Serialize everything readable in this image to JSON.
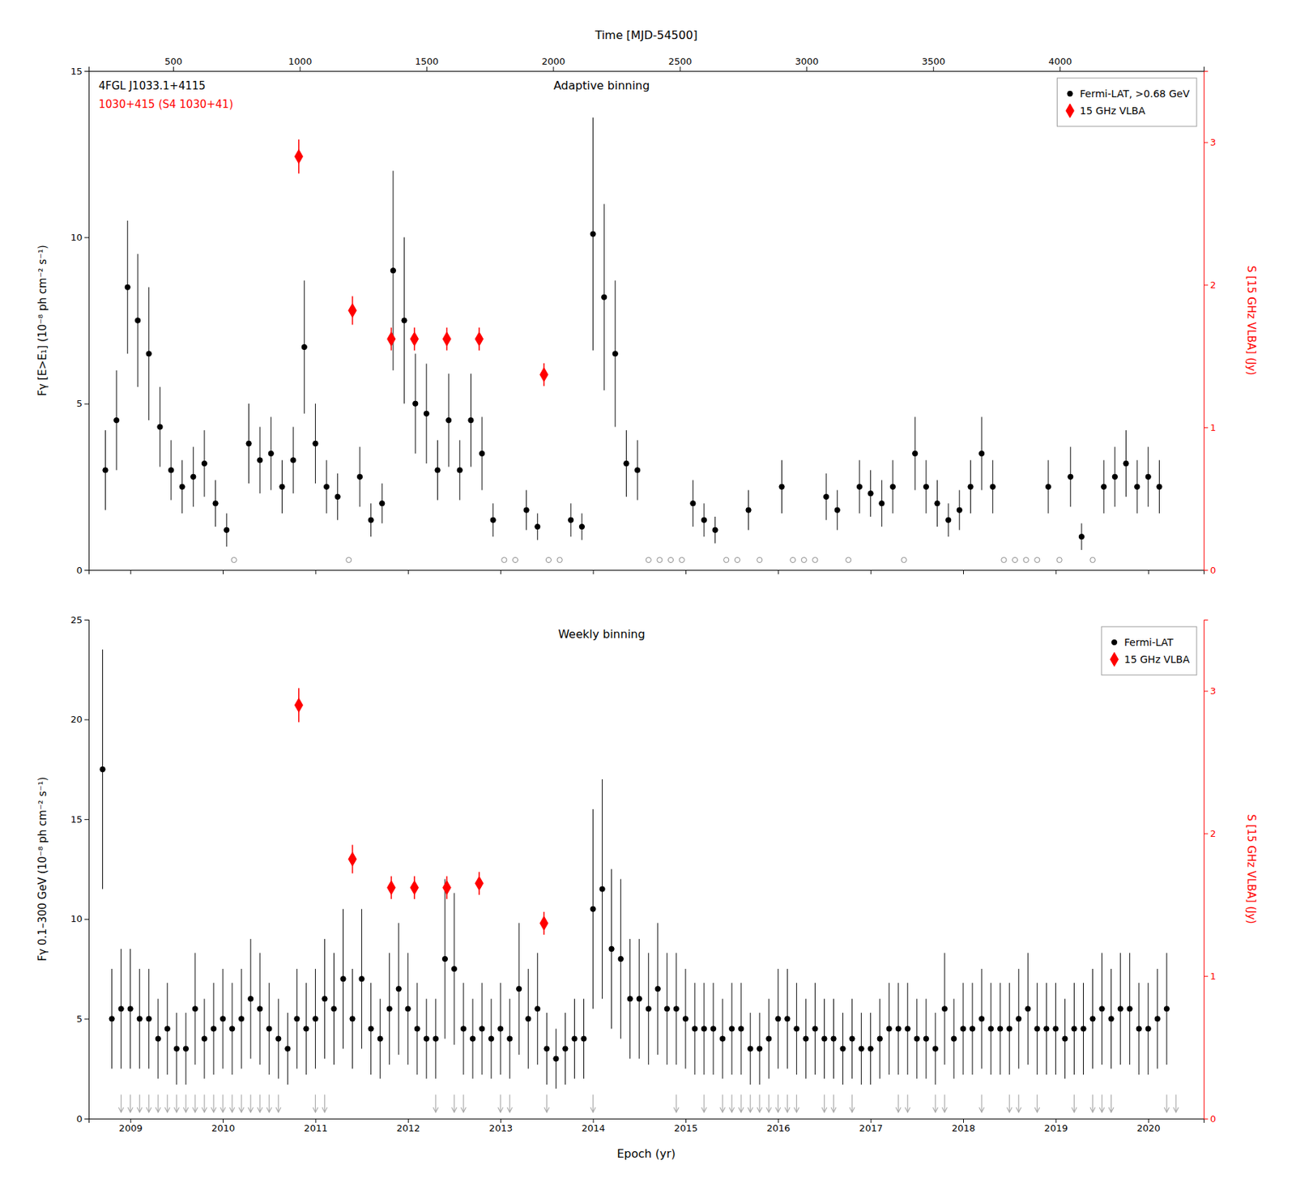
{
  "chart_data": [
    {
      "type": "scatter",
      "title": "Adaptive binning",
      "x2_label": "Time [MJD-54500]",
      "y_label": "Fγ [E>E₁] (10⁻⁸ ph cm⁻² s⁻¹)",
      "y2_label": "S [15 GHz VLBA] (Jy)",
      "annotations": [
        {
          "text": "4FGL J1033.1+4115",
          "color": "black"
        },
        {
          "text": "1030+415 (S4 1030+41)",
          "color": "red"
        }
      ],
      "xlim": [
        2008.55,
        2020.6
      ],
      "xticks": [
        2009,
        2010,
        2011,
        2012,
        2013,
        2014,
        2015,
        2016,
        2017,
        2018,
        2019,
        2020
      ],
      "x2lim": [
        166.8875,
        4568.15
      ],
      "x2ticks": [
        500,
        1000,
        1500,
        2000,
        2500,
        3000,
        3500,
        4000
      ],
      "ylim": [
        0,
        15
      ],
      "yticks": [
        0,
        5,
        10,
        15
      ],
      "y2lim": [
        0,
        3.5
      ],
      "y2ticks": [
        0,
        1,
        2,
        3
      ],
      "tick_labels": "y",
      "grid": false,
      "legend": "upper right",
      "series": [
        {
          "name": "Fermi-LAT, >0.68 GeV",
          "color": "black",
          "marker": "circle",
          "x": [
            2008.73,
            2008.85,
            2008.97,
            2009.08,
            2009.2,
            2009.32,
            2009.44,
            2009.56,
            2009.68,
            2009.8,
            2009.92,
            2010.04,
            2010.28,
            2010.4,
            2010.52,
            2010.64,
            2010.76,
            2010.88,
            2011.0,
            2011.12,
            2011.24,
            2011.48,
            2011.6,
            2011.72,
            2011.84,
            2011.96,
            2012.08,
            2012.2,
            2012.32,
            2012.44,
            2012.56,
            2012.68,
            2012.8,
            2012.92,
            2013.28,
            2013.4,
            2013.76,
            2013.88,
            2014.0,
            2014.12,
            2014.24,
            2014.36,
            2014.48,
            2015.08,
            2015.2,
            2015.32,
            2015.68,
            2016.04,
            2016.52,
            2016.64,
            2016.88,
            2017.0,
            2017.12,
            2017.24,
            2017.48,
            2017.6,
            2017.72,
            2017.84,
            2017.96,
            2018.08,
            2018.2,
            2018.32,
            2018.92,
            2019.16,
            2019.28,
            2019.52,
            2019.64,
            2019.76,
            2019.88,
            2020.0,
            2020.12
          ],
          "values": [
            3.0,
            4.5,
            8.5,
            7.5,
            6.5,
            4.3,
            3.0,
            2.5,
            2.8,
            3.2,
            2.0,
            1.2,
            3.8,
            3.3,
            3.5,
            2.5,
            3.3,
            6.7,
            3.8,
            2.5,
            2.2,
            2.8,
            1.5,
            2.0,
            9.0,
            7.5,
            5.0,
            4.7,
            3.0,
            4.5,
            3.0,
            4.5,
            3.5,
            1.5,
            1.8,
            1.3,
            1.5,
            1.3,
            10.1,
            8.2,
            6.5,
            3.2,
            3.0,
            2.0,
            1.5,
            1.2,
            1.8,
            2.5,
            2.2,
            1.8,
            2.5,
            2.3,
            2.0,
            2.5,
            3.5,
            2.5,
            2.0,
            1.5,
            1.8,
            2.5,
            3.5,
            2.5,
            2.5,
            2.8,
            1.0,
            2.5,
            2.8,
            3.2,
            2.5,
            2.8,
            2.5
          ],
          "errors": [
            1.2,
            1.5,
            2.0,
            2.0,
            2.0,
            1.2,
            0.9,
            0.8,
            0.9,
            1.0,
            0.7,
            0.5,
            1.2,
            1.0,
            1.1,
            0.8,
            1.0,
            2.0,
            1.2,
            0.8,
            0.7,
            0.9,
            0.5,
            0.6,
            3.0,
            2.5,
            1.5,
            1.5,
            0.9,
            1.4,
            0.9,
            1.4,
            1.1,
            0.5,
            0.6,
            0.4,
            0.5,
            0.4,
            3.5,
            2.8,
            2.2,
            1.0,
            0.9,
            0.7,
            0.5,
            0.4,
            0.6,
            0.8,
            0.7,
            0.6,
            0.8,
            0.7,
            0.7,
            0.8,
            1.1,
            0.8,
            0.7,
            0.5,
            0.6,
            0.8,
            1.1,
            0.8,
            0.8,
            0.9,
            0.4,
            0.8,
            0.9,
            1.0,
            0.8,
            0.9,
            0.8
          ]
        },
        {
          "color": "#888888",
          "marker": "open-circle",
          "x": [
            2010.12,
            2011.36,
            2013.04,
            2013.16,
            2013.52,
            2013.64,
            2014.6,
            2014.72,
            2014.84,
            2014.96,
            2015.44,
            2015.56,
            2015.8,
            2016.16,
            2016.28,
            2016.4,
            2016.76,
            2017.36,
            2018.44,
            2018.56,
            2018.68,
            2018.8,
            2019.04,
            2019.4
          ],
          "values": [
            0.3,
            0.3,
            0.3,
            0.3,
            0.3,
            0.3,
            0.3,
            0.3,
            0.3,
            0.3,
            0.3,
            0.3,
            0.3,
            0.3,
            0.3,
            0.3,
            0.3,
            0.3,
            0.3,
            0.3,
            0.3,
            0.3,
            0.3,
            0.3
          ]
        },
        {
          "name": "15 GHz VLBA",
          "color": "red",
          "marker": "diamond",
          "axis": "y2",
          "x": [
            2010.82,
            2011.4,
            2011.82,
            2012.07,
            2012.42,
            2012.77,
            2013.47
          ],
          "values": [
            2.9,
            1.82,
            1.62,
            1.62,
            1.62,
            1.62,
            1.37
          ],
          "errors": [
            0.12,
            0.1,
            0.08,
            0.08,
            0.08,
            0.08,
            0.08
          ]
        }
      ]
    },
    {
      "type": "scatter",
      "title": "Weekly binning",
      "x_label": "Epoch (yr)",
      "y_label": "Fγ 0.1–300 GeV (10⁻⁸ ph cm⁻² s⁻¹)",
      "y2_label": "S [15 GHz VLBA] (Jy)",
      "xlim": [
        2008.55,
        2020.6
      ],
      "xticks": [
        2009,
        2010,
        2011,
        2012,
        2013,
        2014,
        2015,
        2016,
        2017,
        2018,
        2019,
        2020
      ],
      "ylim": [
        0,
        25
      ],
      "yticks": [
        0,
        5,
        10,
        15,
        20,
        25
      ],
      "y2lim": [
        0,
        3.5
      ],
      "y2ticks": [
        0,
        1,
        2,
        3
      ],
      "grid": false,
      "legend": "upper right",
      "series": [
        {
          "name": "Fermi-LAT",
          "color": "black",
          "marker": "circle",
          "x": [
            2008.7,
            2008.8,
            2008.9,
            2009.0,
            2009.1,
            2009.2,
            2009.3,
            2009.4,
            2009.5,
            2009.6,
            2009.7,
            2009.8,
            2009.9,
            2010.0,
            2010.1,
            2010.2,
            2010.3,
            2010.4,
            2010.5,
            2010.6,
            2010.7,
            2010.8,
            2010.9,
            2011.0,
            2011.1,
            2011.2,
            2011.3,
            2011.4,
            2011.5,
            2011.6,
            2011.7,
            2011.8,
            2011.9,
            2012.0,
            2012.1,
            2012.2,
            2012.3,
            2012.4,
            2012.5,
            2012.6,
            2012.7,
            2012.8,
            2012.9,
            2013.0,
            2013.1,
            2013.2,
            2013.3,
            2013.4,
            2013.5,
            2013.6,
            2013.7,
            2013.8,
            2013.9,
            2014.0,
            2014.1,
            2014.2,
            2014.3,
            2014.4,
            2014.5,
            2014.6,
            2014.7,
            2014.8,
            2014.9,
            2015.0,
            2015.1,
            2015.2,
            2015.3,
            2015.4,
            2015.5,
            2015.6,
            2015.7,
            2015.8,
            2015.9,
            2016.0,
            2016.1,
            2016.2,
            2016.3,
            2016.4,
            2016.5,
            2016.6,
            2016.7,
            2016.8,
            2016.9,
            2017.0,
            2017.1,
            2017.2,
            2017.3,
            2017.4,
            2017.5,
            2017.6,
            2017.7,
            2017.8,
            2017.9,
            2018.0,
            2018.1,
            2018.2,
            2018.3,
            2018.4,
            2018.5,
            2018.6,
            2018.7,
            2018.8,
            2018.9,
            2019.0,
            2019.1,
            2019.2,
            2019.3,
            2019.4,
            2019.5,
            2019.6,
            2019.7,
            2019.8,
            2019.9,
            2020.0,
            2020.1,
            2020.2
          ],
          "values": [
            17.5,
            5.0,
            5.5,
            5.5,
            5.0,
            5.0,
            4.0,
            4.5,
            3.5,
            3.5,
            5.5,
            4.0,
            4.5,
            5.0,
            4.5,
            5.0,
            6.0,
            5.5,
            4.5,
            4.0,
            3.5,
            5.0,
            4.5,
            5.0,
            6.0,
            5.5,
            7.0,
            5.0,
            7.0,
            4.5,
            4.0,
            5.5,
            6.5,
            5.5,
            4.5,
            4.0,
            4.0,
            8.0,
            7.5,
            4.5,
            4.0,
            4.5,
            4.0,
            4.5,
            4.0,
            6.5,
            5.0,
            5.5,
            3.5,
            3.0,
            3.5,
            4.0,
            4.0,
            10.5,
            11.5,
            8.5,
            8.0,
            6.0,
            6.0,
            5.5,
            6.5,
            5.5,
            5.5,
            5.0,
            4.5,
            4.5,
            4.5,
            4.0,
            4.5,
            4.5,
            3.5,
            3.5,
            4.0,
            5.0,
            5.0,
            4.5,
            4.0,
            4.5,
            4.0,
            4.0,
            3.5,
            4.0,
            3.5,
            3.5,
            4.0,
            4.5,
            4.5,
            4.5,
            4.0,
            4.0,
            3.5,
            5.5,
            4.0,
            4.5,
            4.5,
            5.0,
            4.5,
            4.5,
            4.5,
            5.0,
            5.5,
            4.5,
            4.5,
            4.5,
            4.0,
            4.5,
            4.5,
            5.0,
            5.5,
            5.0,
            5.5,
            5.5,
            4.5,
            4.5,
            5.0,
            5.5
          ],
          "errors": [
            6.0,
            2.5,
            3.0,
            3.0,
            2.5,
            2.5,
            2.0,
            2.3,
            1.8,
            1.8,
            2.8,
            2.0,
            2.3,
            2.5,
            2.3,
            2.5,
            3.0,
            2.8,
            2.3,
            2.0,
            1.8,
            2.5,
            2.3,
            2.5,
            3.0,
            2.8,
            3.5,
            2.5,
            3.5,
            2.3,
            2.0,
            2.8,
            3.3,
            2.8,
            2.3,
            2.0,
            2.0,
            4.0,
            3.8,
            2.3,
            2.0,
            2.3,
            2.0,
            2.3,
            2.0,
            3.3,
            2.5,
            2.8,
            1.8,
            1.5,
            1.8,
            2.0,
            2.0,
            5.0,
            5.5,
            4.0,
            4.0,
            3.0,
            3.0,
            2.8,
            3.3,
            2.8,
            2.8,
            2.5,
            2.3,
            2.3,
            2.3,
            2.0,
            2.3,
            2.3,
            1.8,
            1.8,
            2.0,
            2.5,
            2.5,
            2.3,
            2.0,
            2.3,
            2.0,
            2.0,
            1.8,
            2.0,
            1.8,
            1.8,
            2.0,
            2.3,
            2.3,
            2.3,
            2.0,
            2.0,
            1.8,
            2.8,
            2.0,
            2.3,
            2.3,
            2.5,
            2.3,
            2.3,
            2.3,
            2.5,
            2.8,
            2.3,
            2.3,
            2.3,
            2.0,
            2.3,
            2.3,
            2.5,
            2.8,
            2.5,
            2.8,
            2.8,
            2.3,
            2.3,
            2.5,
            2.8
          ]
        },
        {
          "color": "#aaaaaa",
          "marker": "arrow-down",
          "x": [
            2008.9,
            2009.0,
            2009.1,
            2009.2,
            2009.3,
            2009.4,
            2009.5,
            2009.6,
            2009.7,
            2009.8,
            2009.9,
            2010.0,
            2010.1,
            2010.2,
            2010.3,
            2010.4,
            2010.5,
            2010.6,
            2011.0,
            2011.1,
            2012.3,
            2012.5,
            2012.6,
            2013.0,
            2013.1,
            2013.5,
            2014.0,
            2014.9,
            2015.2,
            2015.4,
            2015.5,
            2015.6,
            2015.7,
            2015.8,
            2015.9,
            2016.0,
            2016.1,
            2016.2,
            2016.5,
            2016.6,
            2016.8,
            2017.3,
            2017.4,
            2017.7,
            2017.8,
            2018.2,
            2018.5,
            2018.6,
            2018.8,
            2019.2,
            2019.4,
            2019.5,
            2019.6,
            2020.2,
            2020.3
          ],
          "values": [
            1.2,
            1.2,
            1.2,
            1.2,
            1.2,
            1.2,
            1.2,
            1.2,
            1.2,
            1.2,
            1.2,
            1.2,
            1.2,
            1.2,
            1.2,
            1.2,
            1.2,
            1.2,
            1.2,
            1.2,
            1.2,
            1.2,
            1.2,
            1.2,
            1.2,
            1.2,
            1.2,
            1.2,
            1.2,
            1.2,
            1.2,
            1.2,
            1.2,
            1.2,
            1.2,
            1.2,
            1.2,
            1.2,
            1.2,
            1.2,
            1.2,
            1.2,
            1.2,
            1.2,
            1.2,
            1.2,
            1.2,
            1.2,
            1.2,
            1.2,
            1.2,
            1.2,
            1.2,
            1.2,
            1.2
          ]
        },
        {
          "name": "15 GHz VLBA",
          "color": "red",
          "marker": "diamond",
          "axis": "y2",
          "x": [
            2010.82,
            2011.4,
            2011.82,
            2012.07,
            2012.42,
            2012.77,
            2013.47
          ],
          "values": [
            2.9,
            1.82,
            1.62,
            1.62,
            1.62,
            1.65,
            1.37
          ],
          "errors": [
            0.12,
            0.1,
            0.08,
            0.08,
            0.08,
            0.08,
            0.08
          ]
        }
      ]
    }
  ]
}
